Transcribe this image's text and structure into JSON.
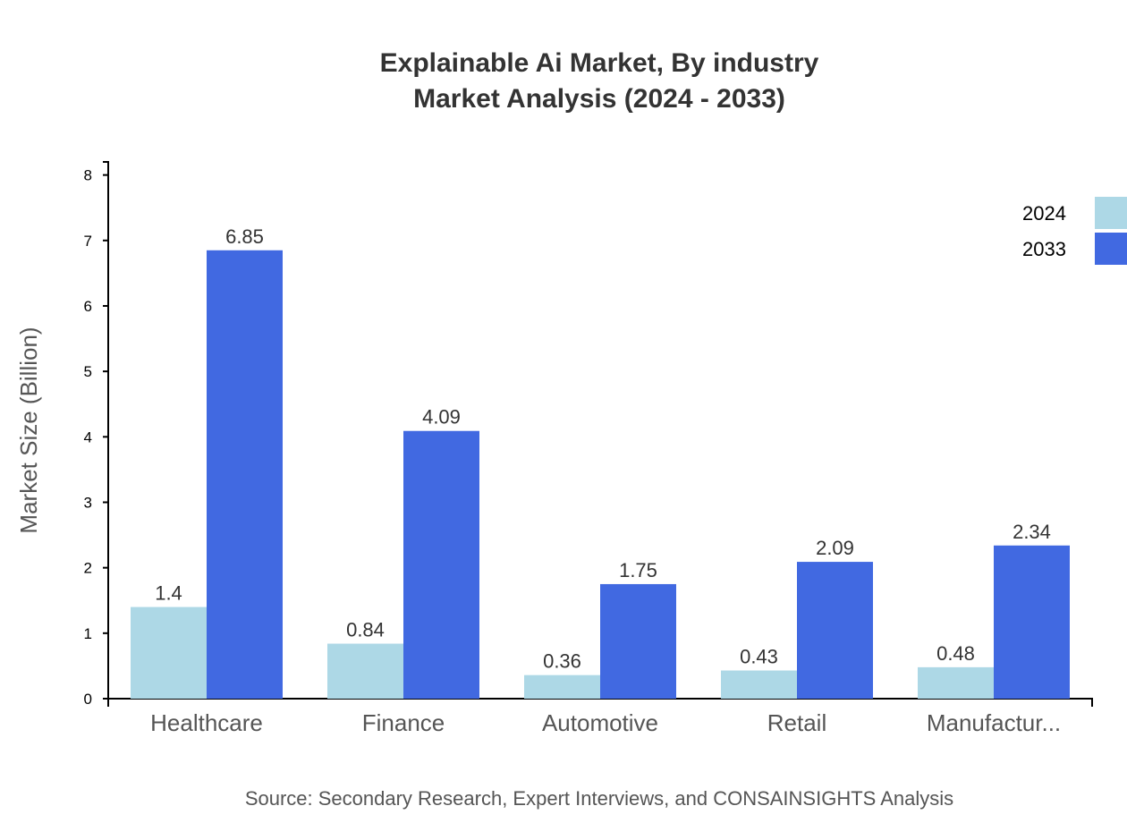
{
  "chart_data": {
    "type": "bar",
    "title": "Explainable Ai Market, By industry",
    "subtitle": "Market Analysis (2024 - 2033)",
    "xlabel": "",
    "ylabel": "Market Size (Billion)",
    "ylim": [
      0,
      8.2
    ],
    "yticks": [
      "0",
      "1",
      "2",
      "3",
      "4",
      "5",
      "6",
      "7",
      "8"
    ],
    "categories": [
      "Healthcare",
      "Finance",
      "Automotive",
      "Retail",
      "Manufactur..."
    ],
    "series": [
      {
        "name": "2024",
        "color": "#ADD8E6",
        "values": [
          1.4,
          0.84,
          0.36,
          0.43,
          0.48
        ],
        "labels": [
          "1.4",
          "0.84",
          "0.36",
          "0.43",
          "0.48"
        ]
      },
      {
        "name": "2033",
        "color": "#4169E1",
        "values": [
          6.85,
          4.09,
          1.75,
          2.09,
          2.34
        ],
        "labels": [
          "6.85",
          "4.09",
          "1.75",
          "2.09",
          "2.34"
        ]
      }
    ],
    "legend_position": "top-right",
    "grid": false,
    "source": "Source: Secondary Research, Expert Interviews, and CONSAINSIGHTS Analysis"
  }
}
